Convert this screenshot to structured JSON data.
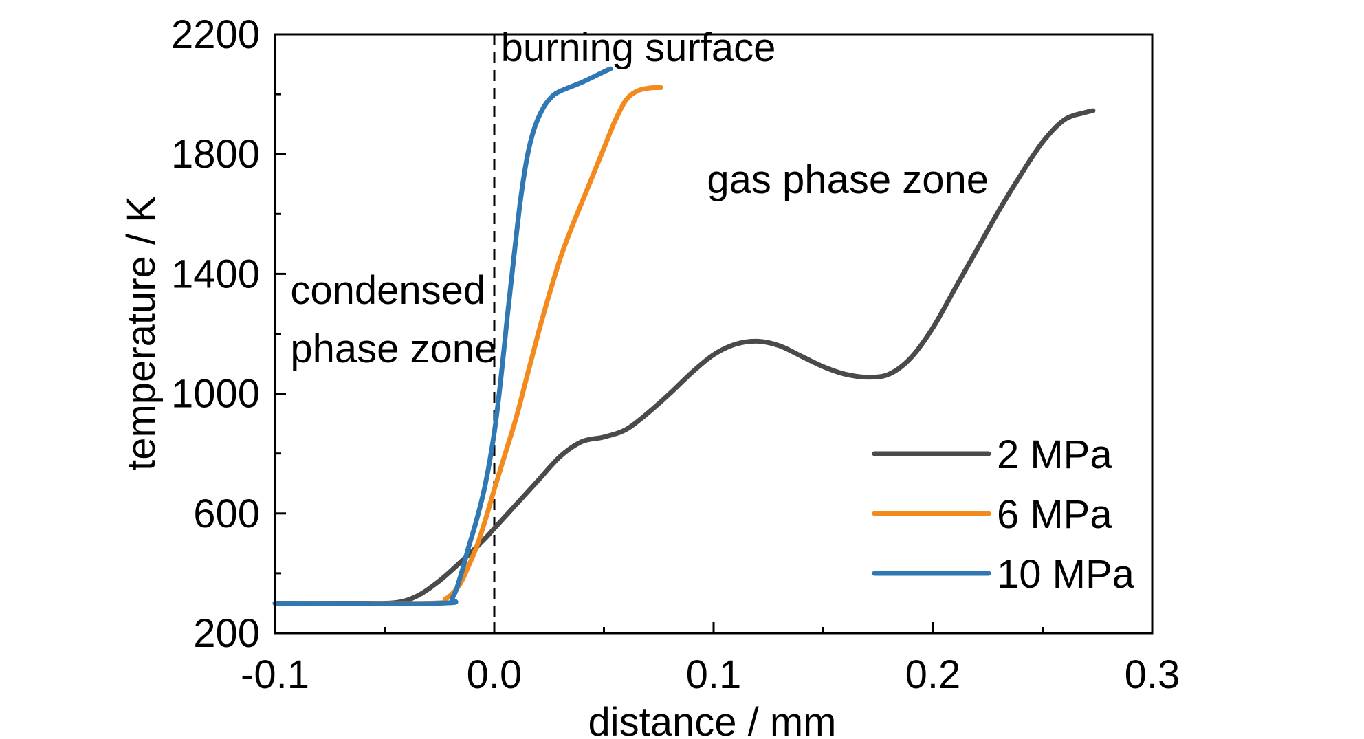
{
  "chart_data": {
    "type": "line",
    "title": "",
    "xlabel": "distance / mm",
    "ylabel": "temperature / K",
    "xlim": [
      -0.1,
      0.3
    ],
    "ylim": [
      200,
      2200
    ],
    "xticks": [
      -0.1,
      0.0,
      0.1,
      0.2,
      0.3
    ],
    "xtick_labels": [
      "-0.1",
      "0.0",
      "0.1",
      "0.2",
      "0.3"
    ],
    "yticks": [
      200,
      600,
      1000,
      1400,
      1800,
      2200
    ],
    "ytick_labels": [
      "200",
      "600",
      "1000",
      "1400",
      "1800",
      "2200"
    ],
    "grid": false,
    "legend_position": "bottom-right",
    "annotations": [
      {
        "text": "burning surface",
        "x": 0.003,
        "y": 2110
      },
      {
        "text": "gas phase zone",
        "x": 0.097,
        "y": 1670
      },
      {
        "text": "condensed",
        "x": -0.093,
        "y": 1300
      },
      {
        "text": "phase zone",
        "x": -0.093,
        "y": 1105
      }
    ],
    "reference_line": {
      "x": 0.0,
      "style": "dashed"
    },
    "series": [
      {
        "name": "2 MPa",
        "color": "#4a4a4a",
        "x": [
          -0.1,
          -0.06,
          -0.045,
          -0.035,
          -0.025,
          -0.015,
          -0.005,
          0.0,
          0.01,
          0.02,
          0.03,
          0.04,
          0.05,
          0.06,
          0.07,
          0.08,
          0.09,
          0.1,
          0.11,
          0.12,
          0.13,
          0.14,
          0.15,
          0.16,
          0.17,
          0.18,
          0.19,
          0.2,
          0.21,
          0.22,
          0.23,
          0.24,
          0.25,
          0.26,
          0.27,
          0.273
        ],
        "y": [
          300,
          300,
          302,
          325,
          375,
          440,
          510,
          550,
          630,
          710,
          790,
          840,
          855,
          880,
          935,
          1000,
          1070,
          1130,
          1165,
          1175,
          1160,
          1125,
          1090,
          1065,
          1055,
          1065,
          1120,
          1220,
          1350,
          1480,
          1610,
          1730,
          1840,
          1915,
          1940,
          1945
        ]
      },
      {
        "name": "6 MPa",
        "color": "#f28a1e",
        "x": [
          -0.1,
          -0.03,
          -0.022,
          -0.016,
          -0.012,
          -0.008,
          -0.004,
          0.0,
          0.005,
          0.01,
          0.015,
          0.02,
          0.025,
          0.03,
          0.035,
          0.04,
          0.045,
          0.05,
          0.055,
          0.06,
          0.065,
          0.07,
          0.073,
          0.076
        ],
        "y": [
          300,
          300,
          315,
          360,
          420,
          490,
          580,
          680,
          800,
          920,
          1060,
          1200,
          1330,
          1450,
          1550,
          1640,
          1730,
          1820,
          1910,
          1980,
          2010,
          2020,
          2022,
          2022
        ]
      },
      {
        "name": "10 MPa",
        "color": "#2f78b4",
        "x": [
          -0.1,
          -0.025,
          -0.019,
          -0.015,
          -0.012,
          -0.008,
          -0.004,
          0.0,
          0.003,
          0.006,
          0.009,
          0.012,
          0.015,
          0.018,
          0.022,
          0.026,
          0.03,
          0.04,
          0.05,
          0.053
        ],
        "y": [
          300,
          300,
          320,
          400,
          480,
          580,
          700,
          870,
          1050,
          1260,
          1460,
          1650,
          1790,
          1880,
          1950,
          1990,
          2010,
          2040,
          2075,
          2085
        ]
      }
    ]
  }
}
